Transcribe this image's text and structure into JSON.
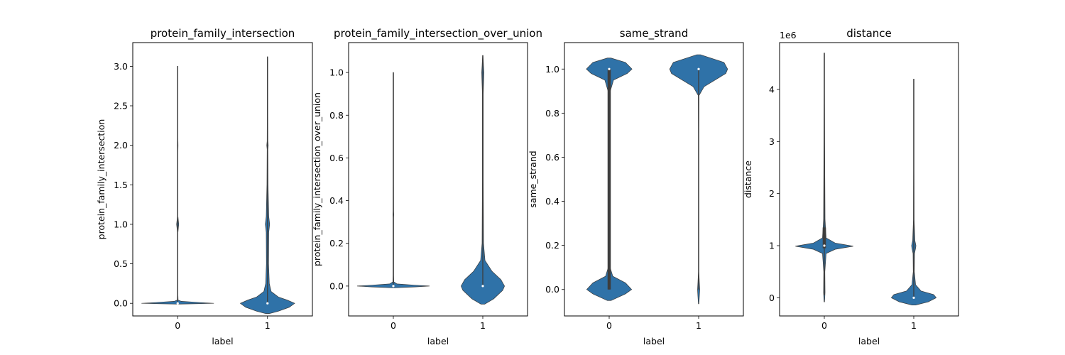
{
  "figure": {
    "background": "#ffffff",
    "violin_color": "#2f72a8",
    "box_color": "#3d3d3d"
  },
  "chart_data": [
    {
      "type": "violin",
      "title": "protein_family_intersection",
      "xlabel": "label",
      "ylabel": "protein_family_intersection",
      "categories": [
        "0",
        "1"
      ],
      "ylim": [
        -0.16,
        3.3
      ],
      "yticks": [
        0.0,
        0.5,
        1.0,
        1.5,
        2.0,
        2.5,
        3.0
      ],
      "ytick_labels": [
        "0.0",
        "0.5",
        "1.0",
        "1.5",
        "2.0",
        "2.5",
        "3.0"
      ],
      "offset_label": "",
      "violins": [
        {
          "label": "0",
          "extent": [
            0.0,
            3.0
          ],
          "median": 0.0,
          "q1": 0.0,
          "q3": 0.0,
          "profile": [
            [
              -0.01,
              0.05
            ],
            [
              -0.005,
              0.55
            ],
            [
              0.0,
              1.0
            ],
            [
              0.01,
              0.6
            ],
            [
              0.025,
              0.1
            ],
            [
              0.04,
              0.012
            ],
            [
              0.1,
              0.008
            ],
            [
              0.9,
              0.008
            ],
            [
              0.96,
              0.02
            ],
            [
              1.0,
              0.03
            ],
            [
              1.04,
              0.02
            ],
            [
              1.1,
              0.008
            ],
            [
              1.9,
              0.006
            ],
            [
              2.0,
              0.01
            ],
            [
              2.1,
              0.006
            ],
            [
              3.0,
              0.006
            ]
          ]
        },
        {
          "label": "1",
          "extent": [
            0.0,
            3.1
          ],
          "median": 0.0,
          "q1": 0.0,
          "q3": 0.0,
          "profile": [
            [
              -0.13,
              0.05
            ],
            [
              -0.1,
              0.3
            ],
            [
              -0.05,
              0.6
            ],
            [
              0.0,
              0.75
            ],
            [
              0.04,
              0.55
            ],
            [
              0.08,
              0.3
            ],
            [
              0.15,
              0.1
            ],
            [
              0.25,
              0.05
            ],
            [
              0.5,
              0.03
            ],
            [
              0.9,
              0.035
            ],
            [
              1.0,
              0.06
            ],
            [
              1.1,
              0.035
            ],
            [
              1.5,
              0.015
            ],
            [
              1.95,
              0.01
            ],
            [
              2.0,
              0.02
            ],
            [
              2.05,
              0.01
            ],
            [
              2.6,
              0.006
            ],
            [
              3.12,
              0.005
            ]
          ]
        }
      ]
    },
    {
      "type": "violin",
      "title": "protein_family_intersection_over_union",
      "xlabel": "label",
      "ylabel": "protein_family_intersection_over_union",
      "categories": [
        "0",
        "1"
      ],
      "ylim": [
        -0.14,
        1.14
      ],
      "yticks": [
        0.0,
        0.2,
        0.4,
        0.6,
        0.8,
        1.0
      ],
      "ytick_labels": [
        "0.0",
        "0.2",
        "0.4",
        "0.6",
        "0.8",
        "1.0"
      ],
      "offset_label": "",
      "violins": [
        {
          "label": "0",
          "extent": [
            0.0,
            1.0
          ],
          "median": 0.0,
          "q1": 0.0,
          "q3": 0.0,
          "profile": [
            [
              -0.008,
              0.05
            ],
            [
              -0.004,
              0.6
            ],
            [
              0.0,
              1.0
            ],
            [
              0.004,
              0.6
            ],
            [
              0.01,
              0.1
            ],
            [
              0.02,
              0.012
            ],
            [
              0.05,
              0.008
            ],
            [
              0.32,
              0.008
            ],
            [
              0.335,
              0.012
            ],
            [
              0.35,
              0.008
            ],
            [
              0.5,
              0.006
            ],
            [
              1.0,
              0.006
            ]
          ]
        },
        {
          "label": "1",
          "extent": [
            0.0,
            1.08
          ],
          "median": 0.0,
          "q1": 0.0,
          "q3": 0.0,
          "profile": [
            [
              -0.085,
              0.05
            ],
            [
              -0.06,
              0.3
            ],
            [
              -0.02,
              0.55
            ],
            [
              0.0,
              0.6
            ],
            [
              0.03,
              0.5
            ],
            [
              0.07,
              0.25
            ],
            [
              0.12,
              0.06
            ],
            [
              0.2,
              0.02
            ],
            [
              0.5,
              0.012
            ],
            [
              0.9,
              0.012
            ],
            [
              0.97,
              0.025
            ],
            [
              1.0,
              0.03
            ],
            [
              1.03,
              0.02
            ],
            [
              1.08,
              0.006
            ]
          ]
        }
      ]
    },
    {
      "type": "violin",
      "title": "same_strand",
      "xlabel": "label",
      "ylabel": "same_strand",
      "categories": [
        "0",
        "1"
      ],
      "ylim": [
        -0.12,
        1.12
      ],
      "yticks": [
        0.0,
        0.2,
        0.4,
        0.6,
        0.8,
        1.0
      ],
      "ytick_labels": [
        "0.0",
        "0.2",
        "0.4",
        "0.6",
        "0.8",
        "1.0"
      ],
      "offset_label": "",
      "violins": [
        {
          "label": "0",
          "extent": [
            0.0,
            1.0
          ],
          "median": 1.0,
          "q1": 0.0,
          "q3": 1.0,
          "profile": [
            [
              -0.05,
              0.05
            ],
            [
              -0.02,
              0.45
            ],
            [
              0.0,
              0.62
            ],
            [
              0.03,
              0.45
            ],
            [
              0.06,
              0.1
            ],
            [
              0.1,
              0.025
            ],
            [
              0.3,
              0.02
            ],
            [
              0.7,
              0.02
            ],
            [
              0.9,
              0.03
            ],
            [
              0.95,
              0.12
            ],
            [
              0.98,
              0.5
            ],
            [
              1.0,
              0.63
            ],
            [
              1.03,
              0.45
            ],
            [
              1.05,
              0.05
            ]
          ]
        },
        {
          "label": "1",
          "extent": [
            0.0,
            1.0
          ],
          "median": 1.0,
          "q1": 1.0,
          "q3": 1.0,
          "profile": [
            [
              -0.065,
              0.005
            ],
            [
              -0.03,
              0.02
            ],
            [
              0.0,
              0.03
            ],
            [
              0.03,
              0.02
            ],
            [
              0.08,
              0.006
            ],
            [
              0.3,
              0.005
            ],
            [
              0.7,
              0.006
            ],
            [
              0.88,
              0.01
            ],
            [
              0.92,
              0.15
            ],
            [
              0.95,
              0.45
            ],
            [
              0.98,
              0.75
            ],
            [
              1.0,
              0.8
            ],
            [
              1.03,
              0.7
            ],
            [
              1.065,
              0.05
            ]
          ]
        }
      ]
    },
    {
      "type": "violin",
      "title": "distance",
      "xlabel": "label",
      "ylabel": "distance",
      "categories": [
        "0",
        "1"
      ],
      "ylim": [
        -350000,
        4900000
      ],
      "yticks": [
        0,
        1000000,
        2000000,
        3000000,
        4000000
      ],
      "ytick_labels": [
        "0",
        "1",
        "2",
        "3",
        "4"
      ],
      "offset_label": "1e6",
      "violins": [
        {
          "label": "0",
          "extent": [
            50000,
            4700000
          ],
          "median": 1000000,
          "q1": 950000,
          "q3": 1350000,
          "profile": [
            [
              -80000,
              0.005
            ],
            [
              100000,
              0.02
            ],
            [
              500000,
              0.015
            ],
            [
              850000,
              0.05
            ],
            [
              930000,
              0.3
            ],
            [
              990000,
              0.8
            ],
            [
              1050000,
              0.3
            ],
            [
              1150000,
              0.05
            ],
            [
              1500000,
              0.02
            ],
            [
              2200000,
              0.015
            ],
            [
              3000000,
              0.01
            ],
            [
              4000000,
              0.006
            ],
            [
              4700000,
              0.005
            ]
          ]
        },
        {
          "label": "1",
          "extent": [
            0,
            4200000
          ],
          "median": 0,
          "q1": 0,
          "q3": 0,
          "profile": [
            [
              -140000,
              0.05
            ],
            [
              -80000,
              0.4
            ],
            [
              0,
              0.62
            ],
            [
              60000,
              0.55
            ],
            [
              130000,
              0.2
            ],
            [
              250000,
              0.05
            ],
            [
              500000,
              0.015
            ],
            [
              850000,
              0.02
            ],
            [
              950000,
              0.05
            ],
            [
              1000000,
              0.06
            ],
            [
              1100000,
              0.03
            ],
            [
              1500000,
              0.01
            ],
            [
              2500000,
              0.006
            ],
            [
              4200000,
              0.004
            ]
          ]
        }
      ]
    }
  ]
}
